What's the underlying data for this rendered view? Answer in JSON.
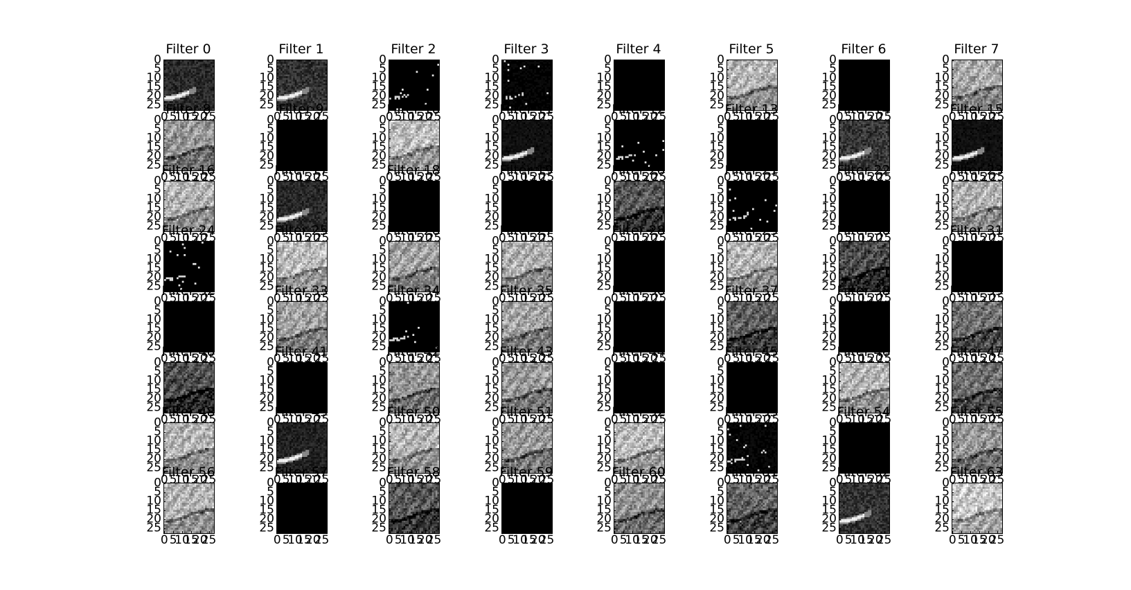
{
  "chart_data": {
    "type": "heatmap",
    "colormap": "gray",
    "grid_rows": 8,
    "grid_cols": 8,
    "title_prefix": "Filter ",
    "image_size": [
      28,
      28
    ],
    "xticks": [
      "0",
      "5",
      "10",
      "15",
      "20",
      "25"
    ],
    "yticks": [
      "0",
      "5",
      "10",
      "15",
      "20",
      "25"
    ],
    "xlim": [
      0,
      27
    ],
    "ylim": [
      27,
      0
    ],
    "filters": [
      {
        "index": 0,
        "title": "Filter 0",
        "style": "band",
        "brightness": 0.15
      },
      {
        "index": 1,
        "title": "Filter 1",
        "style": "band",
        "brightness": 0.18
      },
      {
        "index": 2,
        "title": "Filter 2",
        "style": "spots",
        "brightness": 0.0
      },
      {
        "index": 3,
        "title": "Filter 3",
        "style": "spots",
        "brightness": 0.05
      },
      {
        "index": 4,
        "title": "Filter 4",
        "style": "black",
        "brightness": 0.0
      },
      {
        "index": 5,
        "title": "Filter 5",
        "style": "texture",
        "brightness": 0.72
      },
      {
        "index": 6,
        "title": "Filter 6",
        "style": "black",
        "brightness": 0.0
      },
      {
        "index": 7,
        "title": "Filter 7",
        "style": "texture",
        "brightness": 0.68
      },
      {
        "index": 8,
        "title": "Filter 8",
        "style": "texture",
        "brightness": 0.6
      },
      {
        "index": 9,
        "title": "Filter 9",
        "style": "black",
        "brightness": 0.0
      },
      {
        "index": 10,
        "title": "Filter 10",
        "style": "texture",
        "brightness": 0.75
      },
      {
        "index": 11,
        "title": "Filter 11",
        "style": "band",
        "brightness": 0.06
      },
      {
        "index": 12,
        "title": "Filter 12",
        "style": "spots",
        "brightness": 0.02
      },
      {
        "index": 13,
        "title": "Filter 13",
        "style": "black",
        "brightness": 0.0
      },
      {
        "index": 14,
        "title": "Filter 14",
        "style": "band",
        "brightness": 0.2
      },
      {
        "index": 15,
        "title": "Filter 15",
        "style": "band",
        "brightness": 0.06
      },
      {
        "index": 16,
        "title": "Filter 16",
        "style": "texture",
        "brightness": 0.72
      },
      {
        "index": 17,
        "title": "Filter 17",
        "style": "band",
        "brightness": 0.15
      },
      {
        "index": 18,
        "title": "Filter 18",
        "style": "black",
        "brightness": 0.0
      },
      {
        "index": 19,
        "title": "Filter 19",
        "style": "black",
        "brightness": 0.0
      },
      {
        "index": 20,
        "title": "Filter 20",
        "style": "texture",
        "brightness": 0.35
      },
      {
        "index": 21,
        "title": "Filter 21",
        "style": "spots",
        "brightness": 0.03
      },
      {
        "index": 22,
        "title": "Filter 22",
        "style": "black",
        "brightness": 0.0
      },
      {
        "index": 23,
        "title": "Filter 23",
        "style": "texture",
        "brightness": 0.7
      },
      {
        "index": 24,
        "title": "Filter 24",
        "style": "spots",
        "brightness": 0.0
      },
      {
        "index": 25,
        "title": "Filter 25",
        "style": "texture",
        "brightness": 0.75
      },
      {
        "index": 26,
        "title": "Filter 26",
        "style": "texture",
        "brightness": 0.65
      },
      {
        "index": 27,
        "title": "Filter 27",
        "style": "texture",
        "brightness": 0.7
      },
      {
        "index": 28,
        "title": "Filter 28",
        "style": "black",
        "brightness": 0.0
      },
      {
        "index": 29,
        "title": "Filter 29",
        "style": "texture",
        "brightness": 0.72
      },
      {
        "index": 30,
        "title": "Filter 30",
        "style": "texture",
        "brightness": 0.3
      },
      {
        "index": 31,
        "title": "Filter 31",
        "style": "black",
        "brightness": 0.0
      },
      {
        "index": 32,
        "title": "Filter 32",
        "style": "black",
        "brightness": 0.0
      },
      {
        "index": 33,
        "title": "Filter 33",
        "style": "texture",
        "brightness": 0.65
      },
      {
        "index": 34,
        "title": "Filter 34",
        "style": "spots",
        "brightness": 0.0
      },
      {
        "index": 35,
        "title": "Filter 35",
        "style": "texture",
        "brightness": 0.65
      },
      {
        "index": 36,
        "title": "Filter 36",
        "style": "black",
        "brightness": 0.0
      },
      {
        "index": 37,
        "title": "Filter 37",
        "style": "texture",
        "brightness": 0.38
      },
      {
        "index": 38,
        "title": "Filter 38",
        "style": "black",
        "brightness": 0.0
      },
      {
        "index": 39,
        "title": "Filter 39",
        "style": "texture",
        "brightness": 0.45
      },
      {
        "index": 40,
        "title": "Filter 40",
        "style": "texture",
        "brightness": 0.3
      },
      {
        "index": 41,
        "title": "Filter 41",
        "style": "black",
        "brightness": 0.0
      },
      {
        "index": 42,
        "title": "Filter 42",
        "style": "texture",
        "brightness": 0.6
      },
      {
        "index": 43,
        "title": "Filter 43",
        "style": "texture",
        "brightness": 0.62
      },
      {
        "index": 44,
        "title": "Filter 44",
        "style": "black",
        "brightness": 0.0
      },
      {
        "index": 45,
        "title": "Filter 45",
        "style": "black",
        "brightness": 0.0
      },
      {
        "index": 46,
        "title": "Filter 46",
        "style": "texture",
        "brightness": 0.72
      },
      {
        "index": 47,
        "title": "Filter 47",
        "style": "texture",
        "brightness": 0.45
      },
      {
        "index": 48,
        "title": "Filter 48",
        "style": "texture",
        "brightness": 0.72
      },
      {
        "index": 49,
        "title": "Filter 49",
        "style": "band",
        "brightness": 0.12
      },
      {
        "index": 50,
        "title": "Filter 50",
        "style": "texture",
        "brightness": 0.72
      },
      {
        "index": 51,
        "title": "Filter 51",
        "style": "texture",
        "brightness": 0.62
      },
      {
        "index": 52,
        "title": "Filter 52",
        "style": "texture",
        "brightness": 0.75
      },
      {
        "index": 53,
        "title": "Filter 53",
        "style": "spots",
        "brightness": 0.06
      },
      {
        "index": 54,
        "title": "Filter 54",
        "style": "black",
        "brightness": 0.0
      },
      {
        "index": 55,
        "title": "Filter 55",
        "style": "texture",
        "brightness": 0.6
      },
      {
        "index": 56,
        "title": "Filter 56",
        "style": "texture",
        "brightness": 0.72
      },
      {
        "index": 57,
        "title": "Filter 57",
        "style": "black",
        "brightness": 0.0
      },
      {
        "index": 58,
        "title": "Filter 58",
        "style": "texture",
        "brightness": 0.35
      },
      {
        "index": 59,
        "title": "Filter 59",
        "style": "black",
        "brightness": 0.0
      },
      {
        "index": 60,
        "title": "Filter 60",
        "style": "texture",
        "brightness": 0.58
      },
      {
        "index": 61,
        "title": "Filter 61",
        "style": "texture",
        "brightness": 0.4
      },
      {
        "index": 62,
        "title": "Filter 62",
        "style": "band",
        "brightness": 0.18
      },
      {
        "index": 63,
        "title": "Filter 63",
        "style": "texture",
        "brightness": 0.8
      }
    ]
  }
}
